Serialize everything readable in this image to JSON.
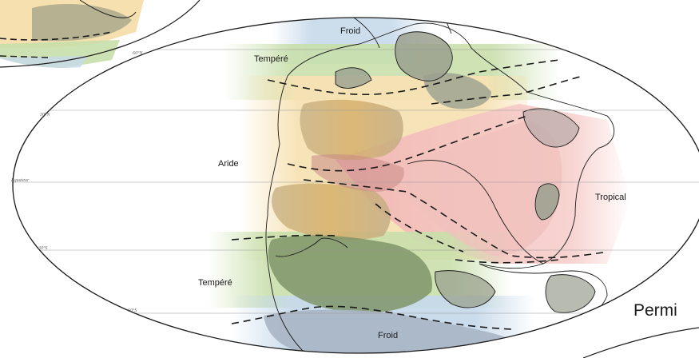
{
  "zones": {
    "froid_north": "Froid",
    "tempere_north": "Tempéré",
    "aride": "Aride",
    "tropical": "Tropical",
    "tempere_south": "Tempéré",
    "froid_south": "Froid"
  },
  "latitudes": {
    "n60": "60°N",
    "n30": "30°N",
    "equator": "Equateur",
    "s30": "30°S",
    "s60": "60°S"
  },
  "period_label": "Permi",
  "colors": {
    "cold": "#c7d9ea",
    "temperate": "#b9d59a",
    "arid": "#f4dba1",
    "arid_dark": "#d8b36a",
    "tropical": "#f2b6b3",
    "land_gray": "#9aa08e",
    "outline": "#1a1a1a"
  }
}
